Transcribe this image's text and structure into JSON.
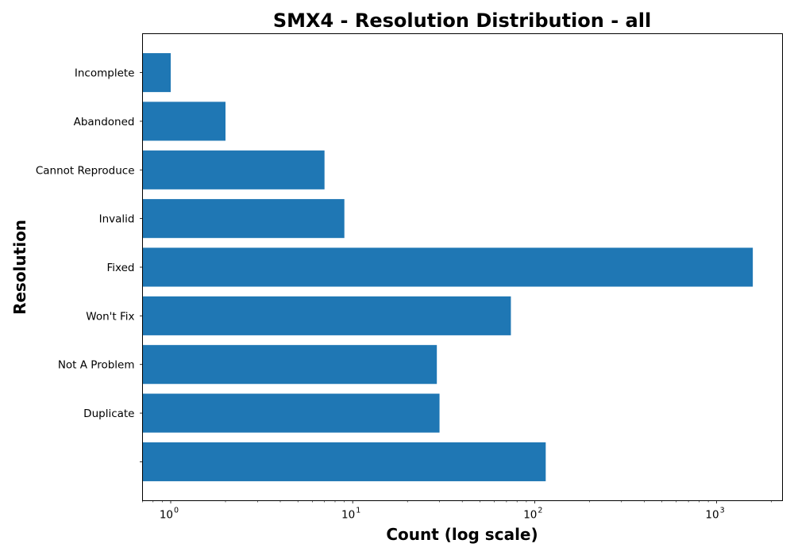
{
  "chart_data": {
    "type": "bar",
    "orientation": "horizontal",
    "title": "SMX4 - Resolution Distribution - all",
    "xlabel": "Count (log scale)",
    "ylabel": "Resolution",
    "x_scale": "log",
    "xlim": [
      0.7,
      2300
    ],
    "x_ticks": [
      {
        "base": "10",
        "exp": "0",
        "value": 1
      },
      {
        "base": "10",
        "exp": "1",
        "value": 10
      },
      {
        "base": "10",
        "exp": "2",
        "value": 100
      },
      {
        "base": "10",
        "exp": "3",
        "value": 1000
      }
    ],
    "categories": [
      "",
      "Duplicate",
      "Not A Problem",
      "Won't Fix",
      "Fixed",
      "Invalid",
      "Cannot Reproduce",
      "Abandoned",
      "Incomplete"
    ],
    "values": [
      115,
      30,
      29,
      74,
      1580,
      9,
      7,
      2,
      1
    ],
    "bar_color": "#1f77b4",
    "grid": false,
    "legend": "none"
  }
}
